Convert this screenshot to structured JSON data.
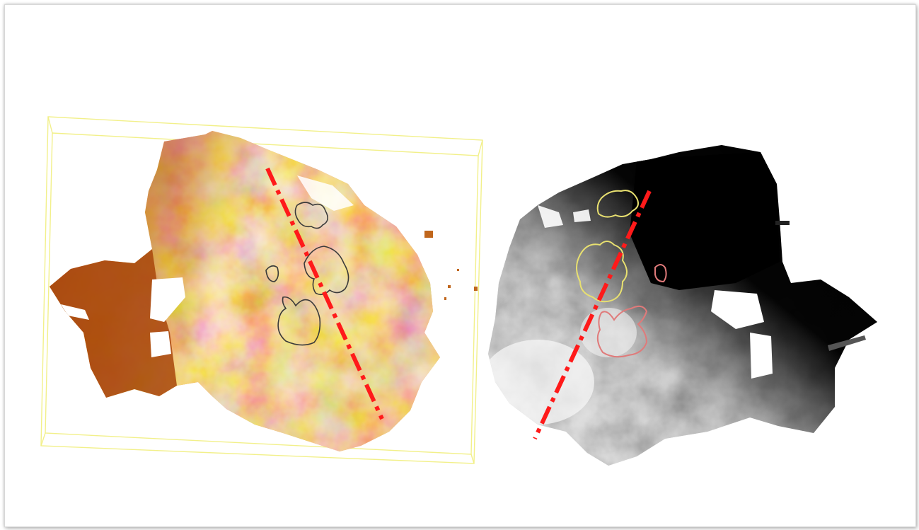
{
  "figure": {
    "panels": [
      {
        "id": "left",
        "colormap": "orange-copper",
        "contour_color": "#3a3a3a"
      },
      {
        "id": "right",
        "colormap": "grayscale",
        "contour_colors": [
          "#e8e070",
          "#e07a7a"
        ]
      }
    ],
    "profile_line_color": "#ff1a1a",
    "bounding_box_color": "#f2f08a"
  }
}
